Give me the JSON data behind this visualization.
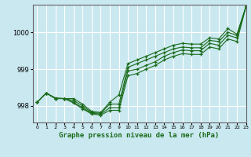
{
  "title": "Graphe pression niveau de la mer (hPa)",
  "bg_color": "#cae8f0",
  "grid_color": "#ffffff",
  "line_color": "#1a6b1a",
  "marker": "+",
  "xlim": [
    -0.5,
    23
  ],
  "ylim": [
    997.55,
    1000.75
  ],
  "yticks": [
    998,
    999,
    1000
  ],
  "xticks": [
    0,
    1,
    2,
    3,
    4,
    5,
    6,
    7,
    8,
    9,
    10,
    11,
    12,
    13,
    14,
    15,
    16,
    17,
    18,
    19,
    20,
    21,
    22,
    23
  ],
  "series": [
    [
      998.1,
      998.35,
      998.2,
      998.2,
      998.2,
      998.05,
      997.85,
      997.82,
      998.1,
      998.3,
      999.15,
      999.25,
      999.35,
      999.45,
      999.55,
      999.65,
      999.7,
      999.68,
      999.68,
      999.85,
      999.82,
      1000.1,
      999.95,
      1000.7
    ],
    [
      998.1,
      998.35,
      998.2,
      998.2,
      998.15,
      998.0,
      997.82,
      997.8,
      998.05,
      998.05,
      999.05,
      999.15,
      999.25,
      999.35,
      999.45,
      999.55,
      999.6,
      999.58,
      999.58,
      999.78,
      999.75,
      1000.0,
      999.92,
      1000.7
    ],
    [
      998.1,
      998.35,
      998.2,
      998.2,
      998.1,
      997.95,
      997.8,
      997.78,
      997.95,
      997.95,
      998.95,
      999.0,
      999.1,
      999.2,
      999.35,
      999.45,
      999.52,
      999.5,
      999.5,
      999.7,
      999.65,
      999.92,
      999.85,
      1000.7
    ],
    [
      998.1,
      998.35,
      998.22,
      998.2,
      998.08,
      997.92,
      997.78,
      997.75,
      997.88,
      997.88,
      998.82,
      998.88,
      999.0,
      999.1,
      999.25,
      999.35,
      999.42,
      999.4,
      999.4,
      999.6,
      999.55,
      999.82,
      999.75,
      1000.7
    ]
  ]
}
